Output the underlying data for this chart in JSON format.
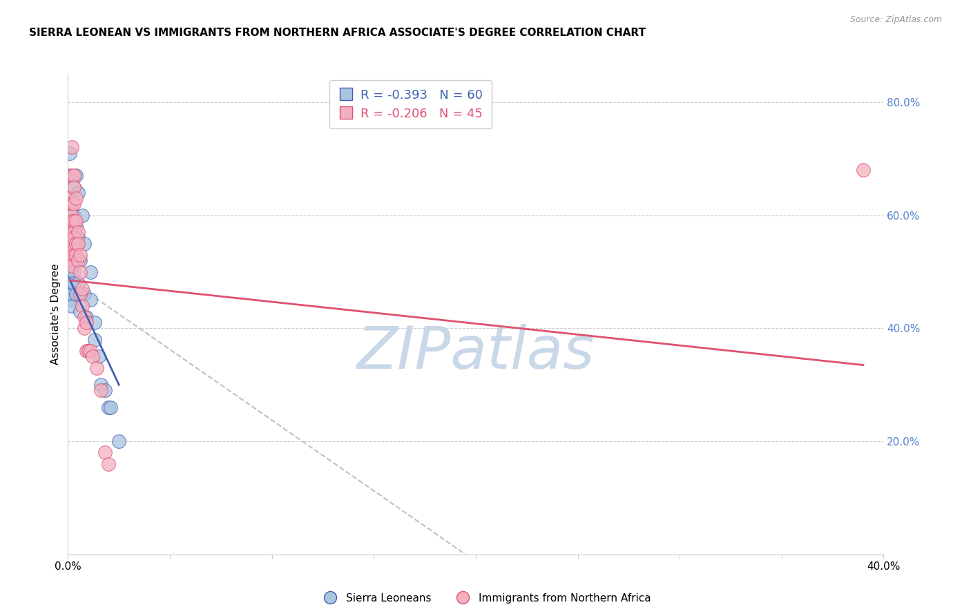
{
  "title": "SIERRA LEONEAN VS IMMIGRANTS FROM NORTHERN AFRICA ASSOCIATE'S DEGREE CORRELATION CHART",
  "source": "Source: ZipAtlas.com",
  "ylabel": "Associate's Degree",
  "x_min": 0.0,
  "x_max": 40.0,
  "y_min": 0.0,
  "y_max": 85.0,
  "x_ticks": [
    0.0,
    5.0,
    10.0,
    15.0,
    20.0,
    25.0,
    30.0,
    35.0,
    40.0
  ],
  "y_ticks": [
    0.0,
    20.0,
    40.0,
    60.0,
    80.0
  ],
  "grid_color": "#cccccc",
  "background_color": "#ffffff",
  "watermark_text": "ZIPatlas",
  "watermark_color": "#c8d8e8",
  "legend_R1": "R = -0.393",
  "legend_N1": "N = 60",
  "legend_R2": "R = -0.206",
  "legend_N2": "N = 45",
  "legend_label1": "Sierra Leoneans",
  "legend_label2": "Immigrants from Northern Africa",
  "series1_color": "#aac4e0",
  "series2_color": "#f4b0c0",
  "line1_color": "#4060b0",
  "line2_color": "#e05070",
  "dashed_line_color": "#c0c0c0",
  "title_fontsize": 11,
  "axis_label_fontsize": 11,
  "tick_label_fontsize": 11,
  "legend_fontsize": 12,
  "right_tick_color": "#5080d0",
  "series1_points": [
    [
      0.1,
      54
    ],
    [
      0.1,
      71
    ],
    [
      0.1,
      67
    ],
    [
      0.1,
      63
    ],
    [
      0.1,
      61
    ],
    [
      0.1,
      59
    ],
    [
      0.1,
      57
    ],
    [
      0.1,
      56
    ],
    [
      0.1,
      55
    ],
    [
      0.1,
      53
    ],
    [
      0.1,
      52
    ],
    [
      0.1,
      50
    ],
    [
      0.1,
      49
    ],
    [
      0.1,
      48
    ],
    [
      0.1,
      47
    ],
    [
      0.1,
      46
    ],
    [
      0.1,
      45
    ],
    [
      0.2,
      62
    ],
    [
      0.2,
      60
    ],
    [
      0.2,
      58
    ],
    [
      0.2,
      56
    ],
    [
      0.2,
      54
    ],
    [
      0.2,
      53
    ],
    [
      0.2,
      52
    ],
    [
      0.2,
      51
    ],
    [
      0.2,
      50
    ],
    [
      0.2,
      48
    ],
    [
      0.2,
      46
    ],
    [
      0.2,
      44
    ],
    [
      0.3,
      65
    ],
    [
      0.3,
      60
    ],
    [
      0.3,
      58
    ],
    [
      0.3,
      55
    ],
    [
      0.3,
      53
    ],
    [
      0.3,
      50
    ],
    [
      0.3,
      48
    ],
    [
      0.4,
      67
    ],
    [
      0.4,
      58
    ],
    [
      0.4,
      52
    ],
    [
      0.4,
      46
    ],
    [
      0.5,
      64
    ],
    [
      0.5,
      56
    ],
    [
      0.5,
      48
    ],
    [
      0.6,
      52
    ],
    [
      0.6,
      43
    ],
    [
      0.7,
      60
    ],
    [
      0.8,
      55
    ],
    [
      0.8,
      46
    ],
    [
      0.9,
      42
    ],
    [
      1.0,
      36
    ],
    [
      1.1,
      50
    ],
    [
      1.1,
      45
    ],
    [
      1.3,
      41
    ],
    [
      1.3,
      38
    ],
    [
      1.5,
      35
    ],
    [
      1.6,
      30
    ],
    [
      1.8,
      29
    ],
    [
      2.0,
      26
    ],
    [
      2.1,
      26
    ],
    [
      2.5,
      20
    ]
  ],
  "series2_points": [
    [
      0.1,
      63
    ],
    [
      0.1,
      57
    ],
    [
      0.2,
      72
    ],
    [
      0.2,
      67
    ],
    [
      0.2,
      62
    ],
    [
      0.2,
      60
    ],
    [
      0.2,
      59
    ],
    [
      0.2,
      57
    ],
    [
      0.2,
      56
    ],
    [
      0.2,
      55
    ],
    [
      0.2,
      53
    ],
    [
      0.2,
      52
    ],
    [
      0.2,
      51
    ],
    [
      0.3,
      67
    ],
    [
      0.3,
      65
    ],
    [
      0.3,
      62
    ],
    [
      0.3,
      59
    ],
    [
      0.3,
      57
    ],
    [
      0.3,
      56
    ],
    [
      0.3,
      54
    ],
    [
      0.3,
      53
    ],
    [
      0.4,
      63
    ],
    [
      0.4,
      59
    ],
    [
      0.4,
      55
    ],
    [
      0.4,
      53
    ],
    [
      0.5,
      57
    ],
    [
      0.5,
      55
    ],
    [
      0.5,
      52
    ],
    [
      0.6,
      53
    ],
    [
      0.6,
      50
    ],
    [
      0.6,
      46
    ],
    [
      0.7,
      47
    ],
    [
      0.7,
      44
    ],
    [
      0.8,
      42
    ],
    [
      0.8,
      40
    ],
    [
      0.9,
      41
    ],
    [
      0.9,
      36
    ],
    [
      1.0,
      36
    ],
    [
      1.1,
      36
    ],
    [
      1.2,
      35
    ],
    [
      1.4,
      33
    ],
    [
      1.6,
      29
    ],
    [
      1.8,
      18
    ],
    [
      2.0,
      16
    ],
    [
      39.0,
      68
    ]
  ],
  "trendline1": [
    [
      0.1,
      48.5
    ],
    [
      2.5,
      30.0
    ]
  ],
  "trendline2": [
    [
      0.1,
      48.5
    ],
    [
      39.0,
      33.5
    ]
  ],
  "dashed_line": [
    [
      0.1,
      48.5
    ],
    [
      19.5,
      0.0
    ]
  ]
}
